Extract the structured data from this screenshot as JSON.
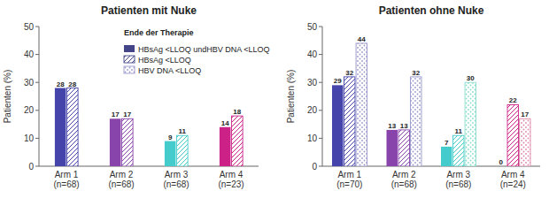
{
  "chart_data": [
    {
      "type": "bar",
      "title": "Patienten mit Nuke",
      "categories": [
        "Arm 1\n(n=68)",
        "Arm 2\n(n=68)",
        "Arm 3\n(n=68)",
        "Arm 4\n(n=23)"
      ],
      "ylabel": "Patienten (%)",
      "ylim": [
        0,
        50
      ],
      "yticks": [
        0,
        10,
        20,
        30,
        40,
        50
      ],
      "grid": false,
      "data_labels": true,
      "legend": "upper right",
      "annotations": [
        "Ende der Therapie"
      ],
      "series": [
        {
          "name": "HBsAg <LLOQ undHBV DNA <LLOQ",
          "color": "#444488",
          "colors": [
            "#4444aa",
            "#8844aa",
            "#44cccc",
            "#cc2288"
          ],
          "values": [
            28,
            17,
            9,
            14
          ]
        },
        {
          "name": "HBsAg <LLOQ",
          "color": "#444488",
          "colors": [
            "#4444aa",
            "#8844aa",
            "#44cccc",
            "#cc2288"
          ],
          "values": [
            28,
            17,
            11,
            18
          ]
        },
        {
          "name": "HBV DNA <LLOQ",
          "color": "#9999cc",
          "values": [
            null,
            null,
            null,
            null
          ]
        }
      ]
    },
    {
      "type": "bar",
      "title": "Patienten ohne Nuke",
      "categories": [
        "Arm 1\n(n=70)",
        "Arm 2\n(n=68)",
        "Arm 3\n(n=68)",
        "Arm 4\n(n=24)"
      ],
      "ylabel": "Patienten (%)",
      "ylim": [
        0,
        50
      ],
      "yticks": [
        0,
        10,
        20,
        30,
        40,
        50
      ],
      "grid": false,
      "data_labels": true,
      "series": [
        {
          "colors": [
            "#4444aa",
            "#8844aa",
            "#44cccc",
            "#cc2288"
          ],
          "values": [
            29,
            13,
            7,
            0
          ]
        },
        {
          "colors": [
            "#4444aa",
            "#8844aa",
            "#44cccc",
            "#cc2288"
          ],
          "values": [
            32,
            13,
            11,
            22
          ]
        },
        {
          "colors": [
            "#9999cc",
            "#9999cc",
            "#88ddcc",
            "#dd88aa"
          ],
          "values": [
            44,
            32,
            30,
            17
          ]
        }
      ]
    }
  ]
}
